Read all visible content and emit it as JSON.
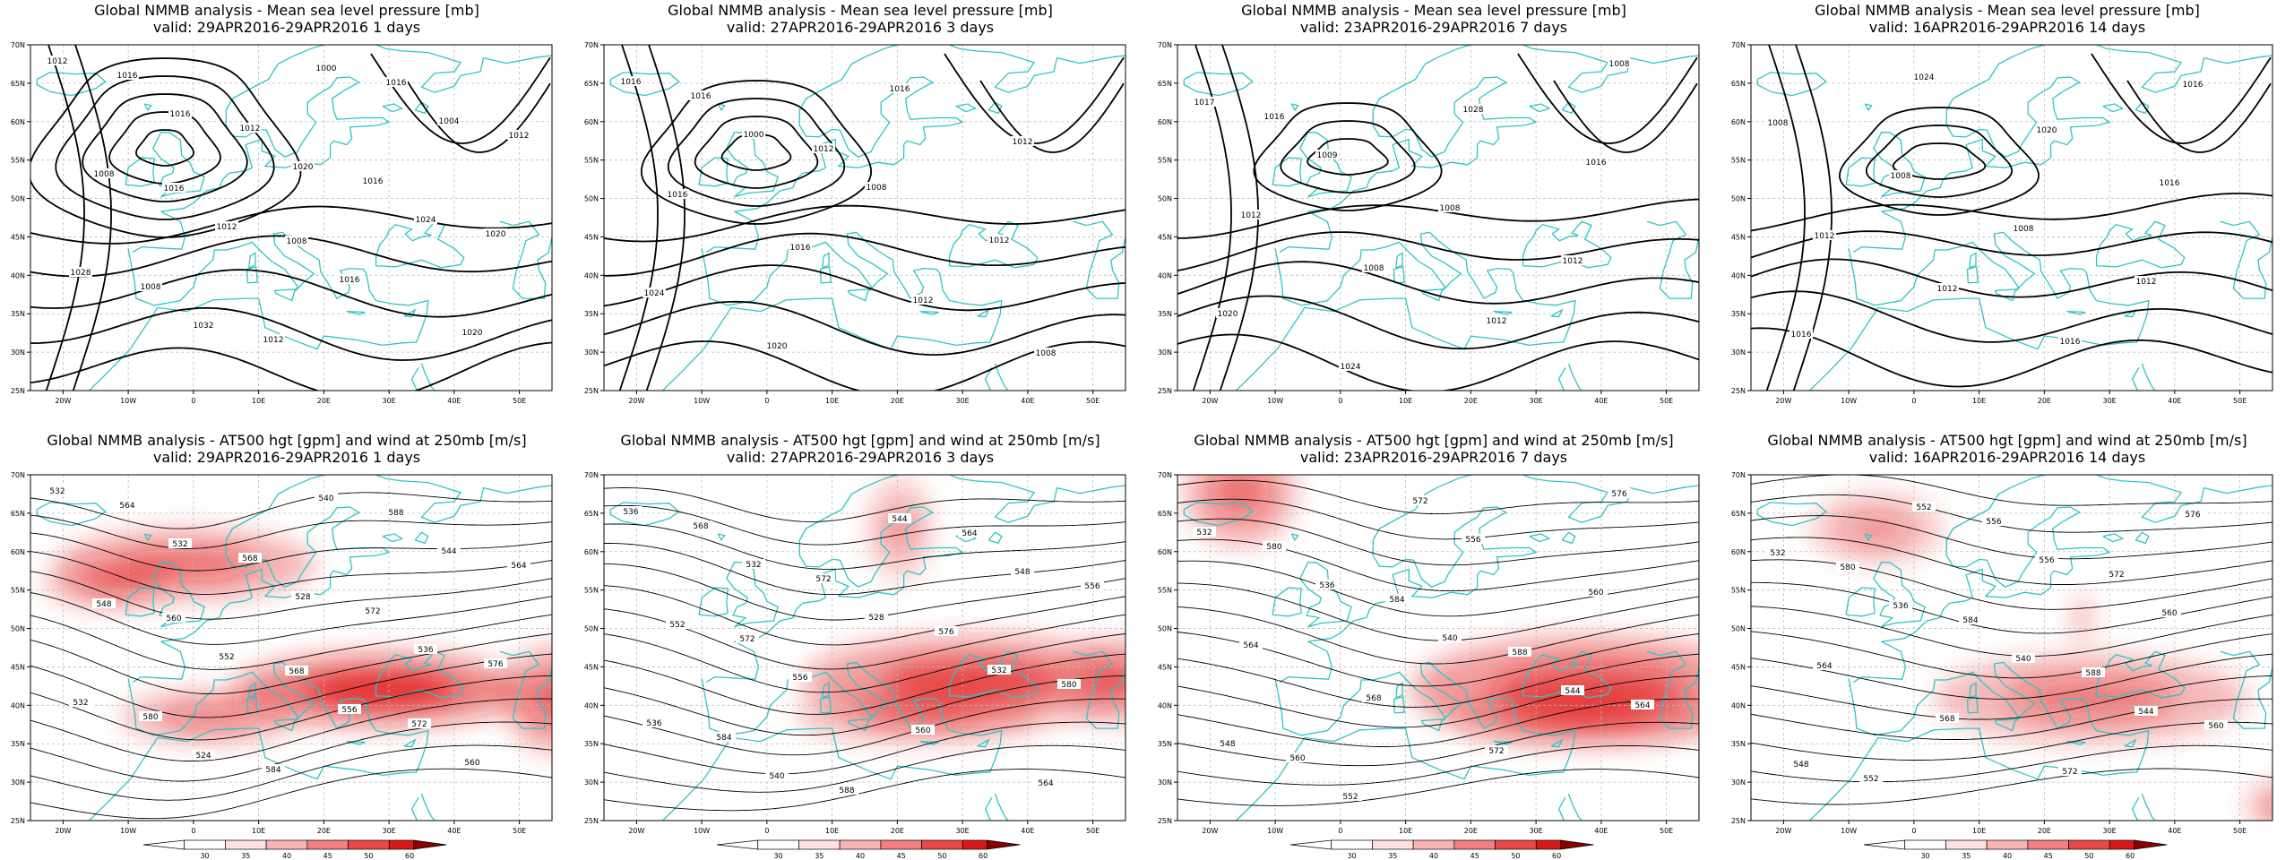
{
  "figure": {
    "top_title": "Global NMMB analysis - Mean sea level pressure [mb]",
    "bottom_title": "Global NMMB analysis - AT500 hgt [gpm] and wind at 250mb [m/s]",
    "colors": {
      "coastline": "#2ec4c4",
      "contour": "#000000",
      "grid": "#bbbbbb",
      "wind": "#e01010"
    },
    "x_ticks": [
      "20W",
      "10W",
      "0",
      "10E",
      "20E",
      "30E",
      "40E",
      "50E"
    ],
    "y_ticks": [
      "70N",
      "65N",
      "60N",
      "55N",
      "50N",
      "45N",
      "40N",
      "35N",
      "30N",
      "25N"
    ],
    "colorbar_ticks": [
      "30",
      "35",
      "40",
      "45",
      "50",
      "60"
    ],
    "validity": [
      {
        "line": "valid: 29APR2016-29APR2016  1 days"
      },
      {
        "line": "valid: 27APR2016-29APR2016  3 days"
      },
      {
        "line": "valid: 23APR2016-29APR2016  7 days"
      },
      {
        "line": "valid: 16APR2016-29APR2016  14 days"
      }
    ]
  },
  "chart_data": [
    {
      "type": "contour",
      "field": "mslp",
      "labels": [
        "1012",
        "1016",
        "1020",
        "1024",
        "1028",
        "1032",
        "1000",
        "1004",
        "1008",
        "1012",
        "1016",
        "1020",
        "1016",
        "1012",
        "1016",
        "1020",
        "1008",
        "1012",
        "1016",
        "1012",
        "1016",
        "1008"
      ]
    },
    {
      "type": "contour",
      "field": "mslp",
      "labels": [
        "1016",
        "1000",
        "1008",
        "1012",
        "1024",
        "1020",
        "1016",
        "1012",
        "1016",
        "1016",
        "1012",
        "1008",
        "1016",
        "1012"
      ]
    },
    {
      "type": "contour",
      "field": "mslp",
      "labels": [
        "1017",
        "1009",
        "1008",
        "1012",
        "1020",
        "1024",
        "1028",
        "1016",
        "1012",
        "1008",
        "1012",
        "1008",
        "1016"
      ]
    },
    {
      "type": "contour",
      "field": "mslp",
      "labels": [
        "1008",
        "1008",
        "1008",
        "1012",
        "1016",
        "1024",
        "1020",
        "1016",
        "1012",
        "1012",
        "1016",
        "1016"
      ]
    },
    {
      "type": "contour",
      "field": "z500_wind250",
      "labels": [
        "532",
        "532",
        "528",
        "536",
        "532",
        "524",
        "540",
        "544",
        "548",
        "552",
        "556",
        "560",
        "564",
        "568",
        "572",
        "576",
        "580",
        "584",
        "588",
        "564",
        "560",
        "568",
        "572"
      ]
    },
    {
      "type": "contour",
      "field": "z500_wind250",
      "labels": [
        "536",
        "532",
        "528",
        "532",
        "536",
        "540",
        "544",
        "548",
        "552",
        "556",
        "560",
        "564",
        "568",
        "572",
        "576",
        "580",
        "584",
        "588",
        "564",
        "556",
        "572"
      ]
    },
    {
      "type": "contour",
      "field": "z500_wind250",
      "labels": [
        "532",
        "536",
        "540",
        "544",
        "548",
        "552",
        "556",
        "560",
        "564",
        "568",
        "572",
        "576",
        "580",
        "584",
        "588",
        "564",
        "560",
        "572"
      ]
    },
    {
      "type": "contour",
      "field": "z500_wind250",
      "labels": [
        "532",
        "536",
        "540",
        "544",
        "548",
        "552",
        "556",
        "560",
        "564",
        "568",
        "572",
        "576",
        "580",
        "584",
        "588",
        "560",
        "552",
        "556",
        "572"
      ]
    }
  ]
}
